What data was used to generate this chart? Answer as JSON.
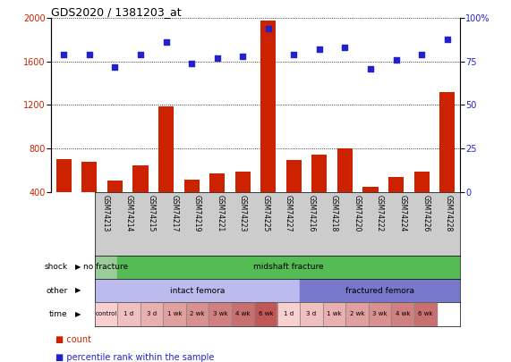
{
  "title": "GDS2020 / 1381203_at",
  "samples": [
    "GSM74213",
    "GSM74214",
    "GSM74215",
    "GSM74217",
    "GSM74219",
    "GSM74221",
    "GSM74223",
    "GSM74225",
    "GSM74227",
    "GSM74216",
    "GSM74218",
    "GSM74220",
    "GSM74222",
    "GSM74224",
    "GSM74226",
    "GSM74228"
  ],
  "counts": [
    700,
    680,
    500,
    640,
    1190,
    510,
    570,
    590,
    1980,
    690,
    745,
    800,
    445,
    540,
    590,
    1320
  ],
  "percentiles": [
    79,
    79,
    72,
    79,
    86,
    74,
    77,
    78,
    94,
    79,
    82,
    83,
    71,
    76,
    79,
    88
  ],
  "ylim_left": [
    400,
    2000
  ],
  "ylim_right": [
    0,
    100
  ],
  "yticks_left": [
    400,
    800,
    1200,
    1600,
    2000
  ],
  "yticks_right": [
    0,
    25,
    50,
    75,
    100
  ],
  "bar_color": "#cc2200",
  "dot_color": "#2222cc",
  "xlabels_bg": "#cccccc",
  "shock_groups": [
    {
      "label": "no fracture",
      "start": 0,
      "end": 1,
      "color": "#99cc99"
    },
    {
      "label": "midshaft fracture",
      "start": 1,
      "end": 16,
      "color": "#55bb55"
    }
  ],
  "other_groups": [
    {
      "label": "intact femora",
      "start": 0,
      "end": 9,
      "color": "#bbbbee"
    },
    {
      "label": "fractured femora",
      "start": 9,
      "end": 16,
      "color": "#7777cc"
    }
  ],
  "time_cells": [
    {
      "label": "control",
      "start": 0,
      "end": 1,
      "color": "#f8d0d0"
    },
    {
      "label": "1 d",
      "start": 1,
      "end": 2,
      "color": "#f0c0c0"
    },
    {
      "label": "3 d",
      "start": 2,
      "end": 3,
      "color": "#e8b0b0"
    },
    {
      "label": "1 wk",
      "start": 3,
      "end": 4,
      "color": "#e0a0a0"
    },
    {
      "label": "2 wk",
      "start": 4,
      "end": 5,
      "color": "#d89090"
    },
    {
      "label": "3 wk",
      "start": 5,
      "end": 6,
      "color": "#d08080"
    },
    {
      "label": "4 wk",
      "start": 6,
      "end": 7,
      "color": "#c87070"
    },
    {
      "label": "6 wk",
      "start": 7,
      "end": 8,
      "color": "#c05858"
    },
    {
      "label": "1 d",
      "start": 8,
      "end": 9,
      "color": "#f8d0d0"
    },
    {
      "label": "3 d",
      "start": 9,
      "end": 10,
      "color": "#f0c0c0"
    },
    {
      "label": "1 wk",
      "start": 10,
      "end": 11,
      "color": "#e8b0b0"
    },
    {
      "label": "2 wk",
      "start": 11,
      "end": 12,
      "color": "#e0a0a0"
    },
    {
      "label": "3 wk",
      "start": 12,
      "end": 13,
      "color": "#d89090"
    },
    {
      "label": "4 wk",
      "start": 13,
      "end": 14,
      "color": "#d08080"
    },
    {
      "label": "6 wk",
      "start": 14,
      "end": 15,
      "color": "#c87070"
    }
  ],
  "row_labels": [
    "shock",
    "other",
    "time"
  ],
  "legend_items": [
    {
      "label": "count",
      "color": "#cc2200"
    },
    {
      "label": "percentile rank within the sample",
      "color": "#2222cc"
    }
  ]
}
